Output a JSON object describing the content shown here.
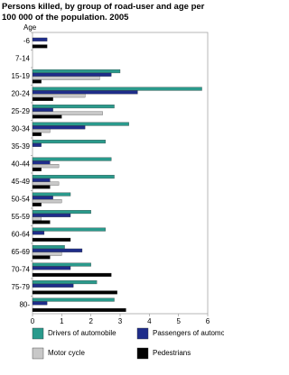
{
  "chart_data": {
    "type": "hbar",
    "title": "Persons killed, by group of road-user and age per 100 000 of the population. 2005",
    "y_label": "Age",
    "categories": [
      "-6",
      "7-14",
      "15-19",
      "20-24",
      "25-29",
      "30-34",
      "35-39",
      "40-44",
      "45-49",
      "50-54",
      "55-59",
      "60-64",
      "65-69",
      "70-74",
      "75-79",
      "80-"
    ],
    "series": [
      {
        "name": "Drivers of automobile",
        "color": "#2a9a8c",
        "values": [
          0,
          0,
          3.0,
          5.8,
          2.8,
          3.3,
          2.5,
          2.7,
          2.8,
          1.3,
          2.0,
          2.5,
          1.1,
          2.0,
          2.2,
          2.8
        ]
      },
      {
        "name": "Passengers of automobile",
        "color": "#1f2d8a",
        "values": [
          0.5,
          0,
          2.7,
          3.6,
          0.7,
          1.8,
          0.3,
          0.6,
          0.6,
          0.7,
          1.3,
          0.4,
          1.7,
          1.3,
          1.4,
          0.5
        ]
      },
      {
        "name": "Motor cycle",
        "color": "#c8c8c8",
        "values": [
          0,
          0,
          2.3,
          1.8,
          2.4,
          0.6,
          0,
          0.9,
          0.9,
          1.0,
          0.3,
          0,
          1.0,
          0,
          0,
          0
        ]
      },
      {
        "name": "Pedestrians",
        "color": "#000000",
        "values": [
          0.5,
          0,
          0.3,
          0.7,
          1.0,
          0.3,
          0,
          0.3,
          0.6,
          0.3,
          0.6,
          1.3,
          0.6,
          2.7,
          2.9,
          3.2
        ]
      }
    ],
    "xlim": [
      0,
      6
    ],
    "xticks": [
      0,
      1,
      2,
      3,
      4,
      5,
      6
    ],
    "grid": false
  }
}
